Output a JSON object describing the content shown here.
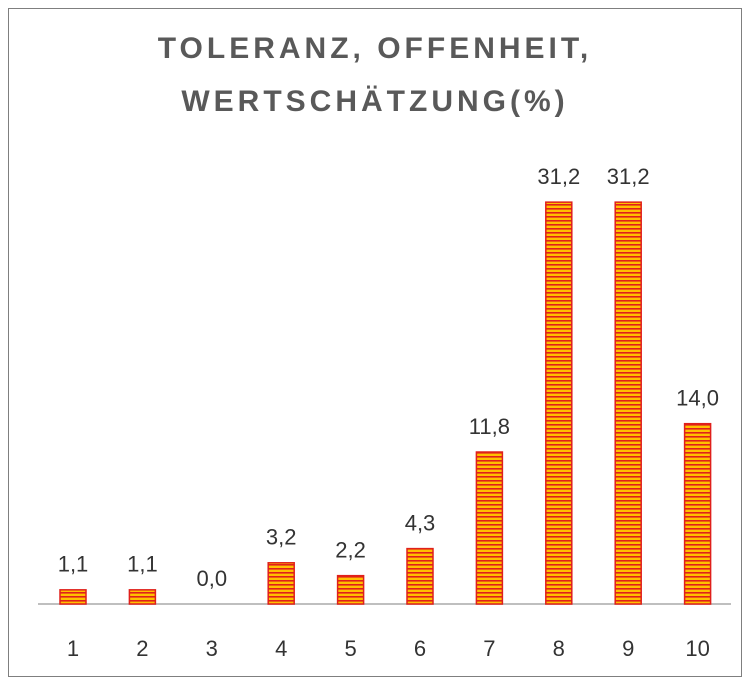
{
  "chart_data": {
    "type": "bar",
    "title": [
      "TOLERANZ, OFFENHEIT,",
      "WERTSCHÄTZUNG(%)"
    ],
    "categories": [
      "1",
      "2",
      "3",
      "4",
      "5",
      "6",
      "7",
      "8",
      "9",
      "10"
    ],
    "values": [
      1.1,
      1.1,
      0.0,
      3.2,
      2.2,
      4.3,
      11.8,
      31.2,
      31.2,
      14.0
    ],
    "value_labels": [
      "1,1",
      "1,1",
      "0,0",
      "3,2",
      "2,2",
      "4,3",
      "11,8",
      "31,2",
      "31,2",
      "14,0"
    ],
    "color": "#e0201b",
    "fill_color": "#ffc000"
  }
}
